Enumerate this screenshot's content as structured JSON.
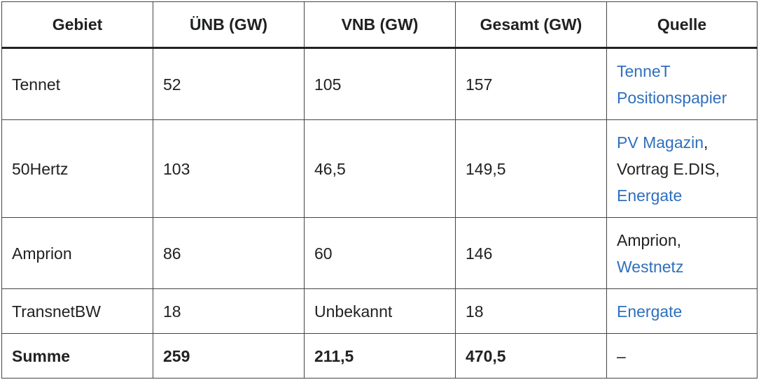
{
  "table": {
    "header": [
      "Gebiet",
      "ÜNB (GW)",
      "VNB (GW)",
      "Gesamt (GW)",
      "Quelle"
    ],
    "rows": [
      {
        "cells": [
          "Tennet",
          "52",
          "105",
          "157"
        ],
        "quelle": [
          [
            {
              "text": "TenneT",
              "link": true
            }
          ],
          [
            {
              "text": "Positionspapier",
              "link": true
            }
          ]
        ]
      },
      {
        "cells": [
          "50Hertz",
          "103",
          "46,5",
          "149,5"
        ],
        "quelle": [
          [
            {
              "text": "PV Magazin",
              "link": true
            },
            {
              "text": ",",
              "link": false
            }
          ],
          [
            {
              "text": "Vortrag E.DIS,",
              "link": false
            }
          ],
          [
            {
              "text": "Energate",
              "link": true
            }
          ]
        ]
      },
      {
        "cells": [
          "Amprion",
          "86",
          "60",
          "146"
        ],
        "quelle": [
          [
            {
              "text": "Amprion,",
              "link": false
            }
          ],
          [
            {
              "text": "Westnetz",
              "link": true
            }
          ]
        ]
      },
      {
        "cells": [
          "TransnetBW",
          "18",
          "Unbekannt",
          "18"
        ],
        "quelle": [
          [
            {
              "text": "Energate",
              "link": true
            }
          ]
        ]
      },
      {
        "cells": [
          "Summe",
          "259",
          "211,5",
          "470,5"
        ],
        "quelle": [
          [
            {
              "text": "–",
              "link": false
            }
          ]
        ],
        "bold": true
      }
    ]
  }
}
